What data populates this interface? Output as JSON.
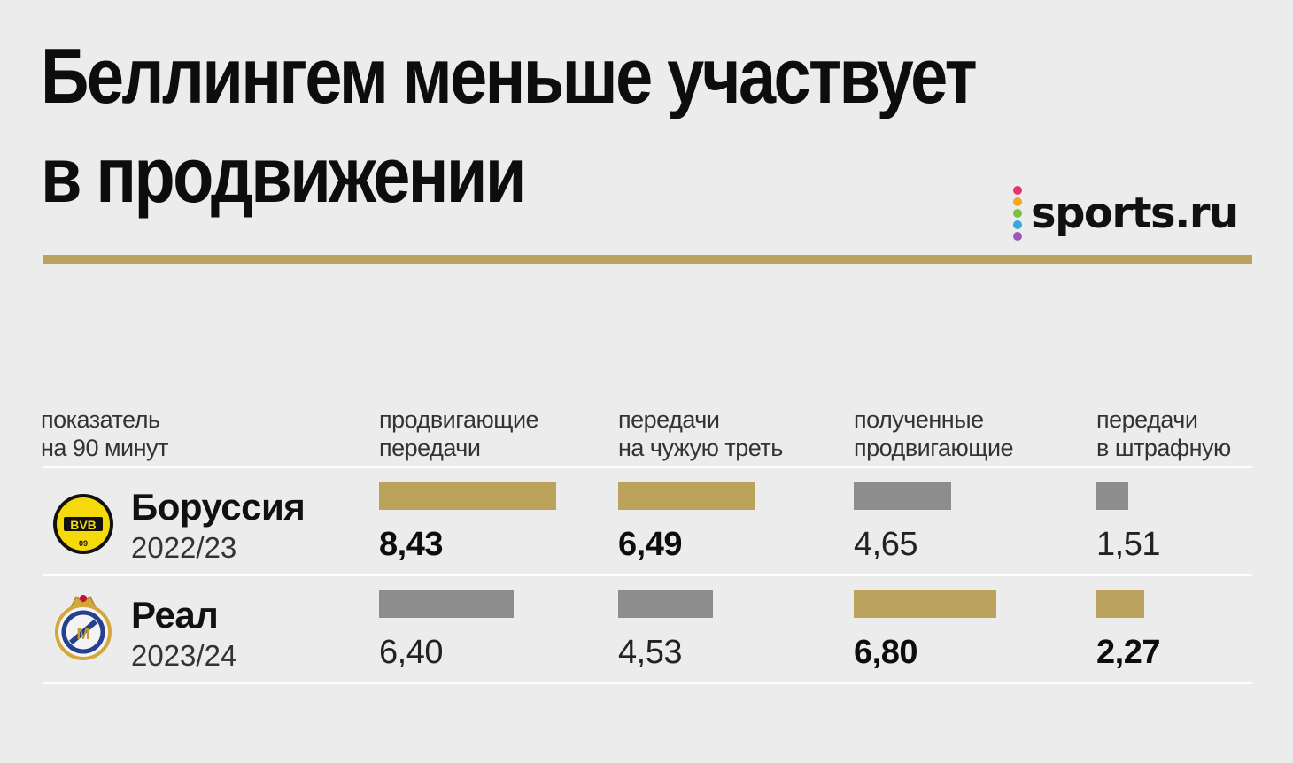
{
  "title": {
    "line1": "Беллингем меньше участвует",
    "line2": "в продвижении"
  },
  "brand": {
    "name": "sports.ru",
    "dot_colors": [
      "#e6326e",
      "#f5a623",
      "#7cc242",
      "#35a7e0",
      "#9b59b6"
    ]
  },
  "colors": {
    "highlight": "#bba35e",
    "neutral": "#8d8d8d",
    "rule": "#bba35e"
  },
  "chart_data": {
    "type": "bar",
    "row_header": [
      "показатель",
      "на 90 минут"
    ],
    "columns": [
      {
        "line1": "продвигающие",
        "line2": "передачи"
      },
      {
        "line1": "передачи",
        "line2": "на чужую треть"
      },
      {
        "line1": "полученные",
        "line2": "продвигающие"
      },
      {
        "line1": "передачи",
        "line2": "в штрафную"
      }
    ],
    "teams": [
      {
        "name": "Боруссия",
        "season": "2022/23",
        "crest": "bvb-crest-icon",
        "values": [
          8.43,
          6.49,
          4.65,
          1.51
        ],
        "labels": [
          "8,43",
          "6,49",
          "4,65",
          "1,51"
        ]
      },
      {
        "name": "Реал",
        "season": "2023/24",
        "crest": "real-madrid-crest-icon",
        "values": [
          6.4,
          4.53,
          6.8,
          2.27
        ],
        "labels": [
          "6,40",
          "4,53",
          "6,80",
          "2,27"
        ]
      }
    ]
  }
}
